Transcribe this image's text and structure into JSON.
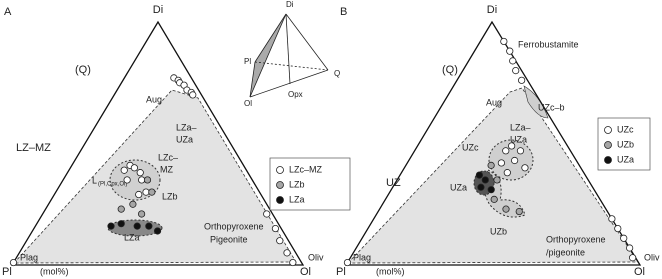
{
  "panels": [
    {
      "texts": [
        "A",
        "Di",
        "(Q)",
        "Aug",
        "LZa–",
        "UZa",
        "LZ–MZ",
        "L",
        "(Pl,Cpx,Ol)",
        "LZc–",
        "MZ",
        "LZb",
        "LZa",
        "Orthopyroxene",
        "Pigeonite",
        "Oliv",
        "Plag",
        "Pl",
        "(mol%)",
        "Ol"
      ],
      "groups": [
        {
          "name": "LZc–MZ",
          "color": "#ffffff",
          "points": [
            [
              77,
              17,
              6
            ],
            [
              76,
              19,
              5
            ],
            [
              75,
              20,
              5
            ],
            [
              74,
              22,
              4
            ],
            [
              72,
              24,
              4
            ],
            [
              71,
              26,
              3
            ],
            [
              70,
              27,
              3
            ],
            [
              39,
              19,
              42
            ],
            [
              41,
              20,
              39
            ],
            [
              40,
              22,
              38
            ],
            [
              38,
              25,
              37
            ],
            [
              35,
              22,
              43
            ],
            [
              35,
              27,
              38
            ],
            [
              29,
              29,
              42
            ],
            [
              30,
              31,
              39
            ],
            [
              21,
              77,
              2
            ],
            [
              15,
              83,
              2
            ],
            [
              10,
              87,
              3
            ],
            [
              5,
              92,
              3
            ],
            [
              1,
              96,
              3
            ],
            [
              1,
              0,
              99
            ]
          ]
        },
        {
          "name": "LZb",
          "color": "#a6a6a6",
          "points": [
            [
              35,
              29,
              36
            ],
            [
              30,
              33,
              37
            ],
            [
              23,
              26,
              51
            ],
            [
              25,
              29,
              46
            ],
            [
              21,
              34,
              45
            ]
          ]
        },
        {
          "name": "LZa",
          "color": "#111111",
          "points": [
            [
              16,
              26,
              58
            ],
            [
              17,
              29,
              54
            ],
            [
              16,
              35,
              49
            ],
            [
              16,
              39,
              45
            ],
            [
              14,
              43,
              43
            ]
          ]
        }
      ]
    },
    {
      "texts": [
        "B",
        "Di",
        "Ferrobustamite",
        "(Q)",
        "Aug",
        "UZc–b",
        "LZa–",
        "UZa",
        "UZc",
        "UZ",
        "UZa",
        "UZb",
        "Orthopyroxene",
        "/pigeonite",
        "Oliv",
        "Plag",
        "Pl",
        "(mol%)",
        "Ol"
      ],
      "groups": [
        {
          "name": "UZc",
          "color": "#ffffff",
          "points": [
            [
              92,
              8,
              0
            ],
            [
              88,
              12,
              0
            ],
            [
              84,
              15,
              1
            ],
            [
              80,
              18,
              2
            ],
            [
              76,
              22,
              2
            ],
            [
              47,
              31,
              22
            ],
            [
              49,
              32,
              19
            ],
            [
              47,
              36,
              17
            ],
            [
              42,
              32,
              26
            ],
            [
              43,
              36,
              21
            ],
            [
              38,
              36,
              26
            ],
            [
              40,
              41,
              19
            ],
            [
              19,
              81,
              0
            ],
            [
              15,
              85,
              0
            ],
            [
              11,
              89,
              0
            ],
            [
              7,
              93,
              0
            ],
            [
              3,
              96,
              1
            ],
            [
              1,
              0,
              99
            ]
          ]
        },
        {
          "name": "UZb",
          "color": "#a6a6a6",
          "points": [
            [
              41,
              29,
              30
            ],
            [
              35,
              34,
              31
            ],
            [
              27,
              37,
              36
            ],
            [
              23,
              43,
              34
            ],
            [
              22,
              48,
              30
            ]
          ]
        },
        {
          "name": "UZa",
          "color": "#111111",
          "points": [
            [
              37,
              27,
              36
            ],
            [
              35,
              30,
              35
            ],
            [
              31,
              34,
              35
            ],
            [
              32,
              30,
              38
            ]
          ]
        }
      ]
    }
  ],
  "inset": {
    "texts": [
      "Di",
      "Pl",
      "Q",
      "Ol",
      "Opx"
    ]
  }
}
